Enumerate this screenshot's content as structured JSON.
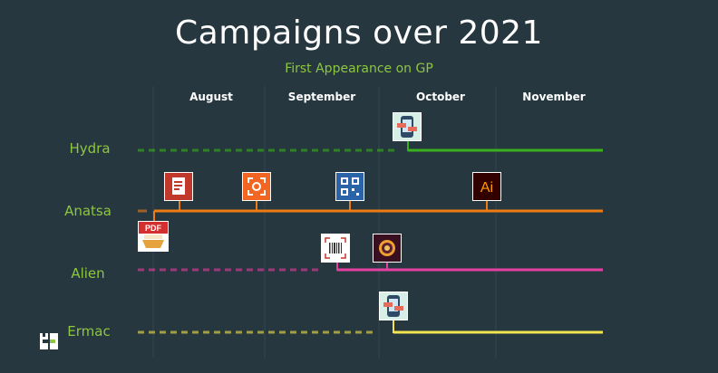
{
  "title": "Campaigns over 2021",
  "subtitle": "First Appearance on GP",
  "months": [
    "August",
    "September",
    "October",
    "November"
  ],
  "rows": [
    {
      "label": "Hydra",
      "color": "#3ab01c"
    },
    {
      "label": "Anatsa",
      "color": "#ef7c12"
    },
    {
      "label": "Alien",
      "color": "#e540a0"
    },
    {
      "label": "Ermac",
      "color": "#f3e34e"
    }
  ],
  "icons": {
    "hydra_app": "dropper-app-icon",
    "anatsa_pdf_app": "pdf-document-app-icon",
    "anatsa_scan_app": "orange-scanner-app-icon",
    "anatsa_qr_app": "qr-scanner-app-icon",
    "anatsa_ai_app": "Ai",
    "anatsa_pdf_scanner": "PDF",
    "alien_barcode_app": "barcode-scanner-app-icon",
    "alien_wow_app": "wow-app-icon",
    "ermac_app": "dropper-app-icon"
  },
  "grid_color": "#33464f",
  "dash_opacity": 0.6
}
